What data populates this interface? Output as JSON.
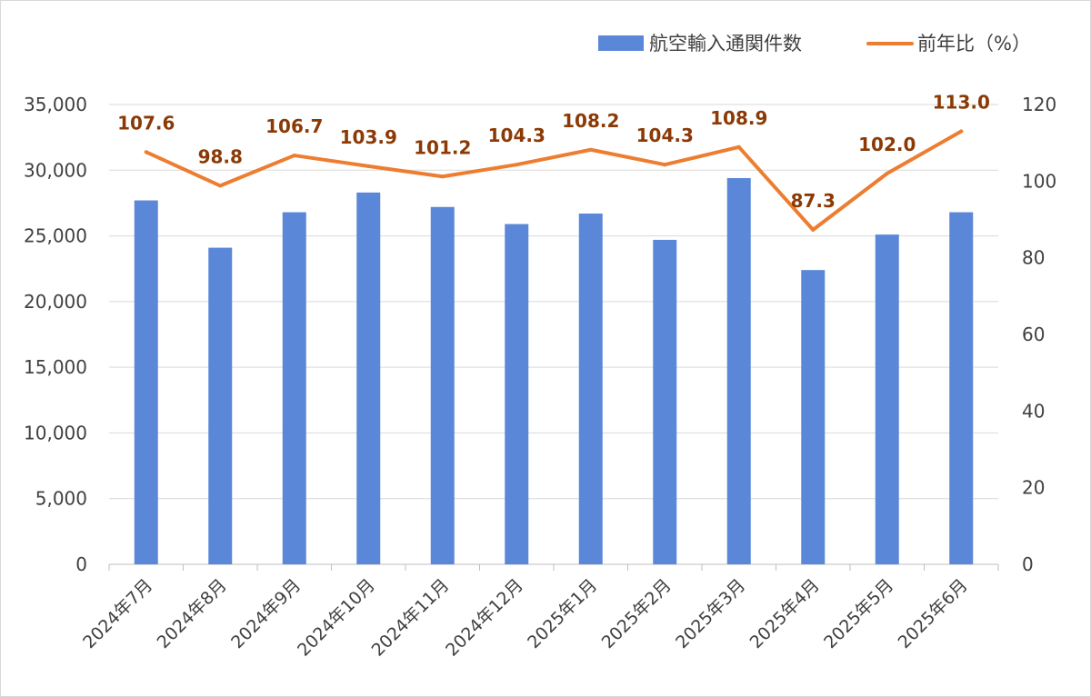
{
  "chart_data": {
    "type": "bar+line",
    "categories": [
      "2024年7月",
      "2024年8月",
      "2024年9月",
      "2024年10月",
      "2024年11月",
      "2024年12月",
      "2025年1月",
      "2025年2月",
      "2025年3月",
      "2025年4月",
      "2025年5月",
      "2025年6月"
    ],
    "series": [
      {
        "name": "航空輸入通関件数",
        "type": "bar",
        "axis": "left",
        "color": "#5b87d8",
        "values": [
          27700,
          24100,
          26800,
          28300,
          27200,
          25900,
          26700,
          24700,
          29400,
          22400,
          25100,
          26800
        ]
      },
      {
        "name": "前年比（%）",
        "type": "line",
        "axis": "right",
        "color": "#ed7d31",
        "values": [
          107.6,
          98.8,
          106.7,
          103.9,
          101.2,
          104.3,
          108.2,
          104.3,
          108.9,
          87.3,
          102.0,
          113.0
        ],
        "labels": [
          "107.6",
          "98.8",
          "106.7",
          "103.9",
          "101.2",
          "104.3",
          "108.2",
          "104.3",
          "108.9",
          "87.3",
          "102.0",
          "113.0"
        ]
      }
    ],
    "left_axis": {
      "min": 0,
      "max": 35000,
      "step": 5000,
      "tick_labels": [
        "0",
        "5,000",
        "10,000",
        "15,000",
        "20,000",
        "25,000",
        "30,000",
        "35,000"
      ]
    },
    "right_axis": {
      "min": 0,
      "max": 120,
      "step": 20,
      "tick_labels": [
        "0",
        "20",
        "40",
        "60",
        "80",
        "100",
        "120"
      ]
    },
    "grid": true,
    "legend_position": "top-right",
    "label_color": "#8b3a06"
  }
}
